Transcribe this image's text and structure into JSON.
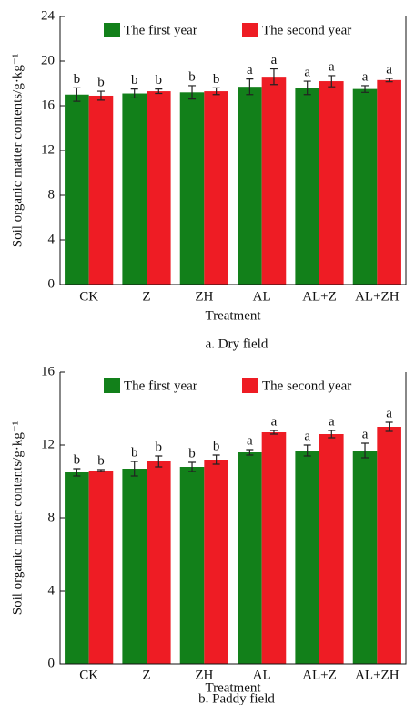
{
  "chart_data": [
    {
      "type": "bar",
      "caption": "a. Dry field",
      "x_label": "Treatment",
      "y_label": "Soil organic matter contents/g·kg⁻¹",
      "categories": [
        "CK",
        "Z",
        "ZH",
        "AL",
        "AL+Z",
        "AL+ZH"
      ],
      "series": [
        {
          "name": "The first year",
          "color": "#12801a",
          "values": [
            17.0,
            17.1,
            17.2,
            17.7,
            17.6,
            17.5
          ],
          "errors": [
            0.6,
            0.4,
            0.6,
            0.7,
            0.6,
            0.3
          ],
          "labels": [
            "b",
            "b",
            "b",
            "a",
            "a",
            "a"
          ]
        },
        {
          "name": "The second year",
          "color": "#ee1c24",
          "values": [
            16.9,
            17.3,
            17.3,
            18.6,
            18.2,
            18.3
          ],
          "errors": [
            0.4,
            0.2,
            0.3,
            0.7,
            0.5,
            0.15
          ],
          "labels": [
            "b",
            "b",
            "b",
            "a",
            "a",
            "a"
          ]
        }
      ],
      "ylim": [
        0,
        24
      ],
      "yticks": [
        0,
        4,
        8,
        12,
        16,
        20,
        24
      ],
      "legend": "top"
    },
    {
      "type": "bar",
      "caption": "b. Paddy field",
      "x_label": "Treatment",
      "y_label": "Soil organic matter contents/g·kg⁻¹",
      "categories": [
        "CK",
        "Z",
        "ZH",
        "AL",
        "AL+Z",
        "AL+ZH"
      ],
      "series": [
        {
          "name": "The first year",
          "color": "#12801a",
          "values": [
            10.5,
            10.7,
            10.8,
            11.6,
            11.7,
            11.7
          ],
          "errors": [
            0.2,
            0.4,
            0.25,
            0.15,
            0.3,
            0.4
          ],
          "labels": [
            "b",
            "b",
            "b",
            "a",
            "a",
            "a"
          ]
        },
        {
          "name": "The second year",
          "color": "#ee1c24",
          "values": [
            10.6,
            11.1,
            11.2,
            12.7,
            12.6,
            13.0
          ],
          "errors": [
            0.05,
            0.3,
            0.25,
            0.1,
            0.2,
            0.25
          ],
          "labels": [
            "b",
            "b",
            "b",
            "a",
            "a",
            "a"
          ]
        }
      ],
      "ylim": [
        0,
        16
      ],
      "yticks": [
        0,
        4,
        8,
        12,
        16
      ],
      "legend": "top"
    }
  ]
}
